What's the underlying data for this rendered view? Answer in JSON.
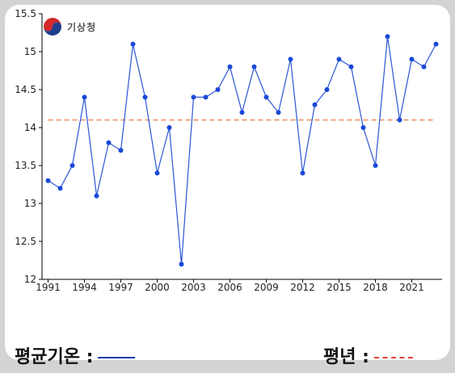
{
  "logo": {
    "text": "기상청",
    "icon": "kma-taegeuk-logo"
  },
  "legend": {
    "series_label": "평균기온 :",
    "normal_label": "평년 :"
  },
  "colors": {
    "series": "#2b55d6",
    "marker": "#1a49d8",
    "normal": "#f0905e",
    "axis": "#000000"
  },
  "chart_data": {
    "type": "line",
    "x": [
      1991,
      1992,
      1993,
      1994,
      1995,
      1996,
      1997,
      1998,
      1999,
      2000,
      2001,
      2002,
      2003,
      2004,
      2005,
      2006,
      2007,
      2008,
      2009,
      2010,
      2011,
      2012,
      2013,
      2014,
      2015,
      2016,
      2017,
      2018,
      2019,
      2020,
      2021,
      2022,
      2023
    ],
    "series": [
      {
        "name": "평균기온",
        "values": [
          13.3,
          13.2,
          13.5,
          14.4,
          13.1,
          13.8,
          13.7,
          15.1,
          14.4,
          13.4,
          14.0,
          12.2,
          14.4,
          14.4,
          14.5,
          14.8,
          14.2,
          14.8,
          14.4,
          14.2,
          14.9,
          13.4,
          14.3,
          14.5,
          14.9,
          14.8,
          14.0,
          13.5,
          15.2,
          14.1,
          14.9,
          14.8,
          15.1
        ]
      },
      {
        "name": "평년",
        "values": [
          14.1,
          14.1,
          14.1,
          14.1,
          14.1,
          14.1,
          14.1,
          14.1,
          14.1,
          14.1,
          14.1,
          14.1,
          14.1,
          14.1,
          14.1,
          14.1,
          14.1,
          14.1,
          14.1,
          14.1,
          14.1,
          14.1,
          14.1,
          14.1,
          14.1,
          14.1,
          14.1,
          14.1,
          14.1,
          14.1,
          14.1,
          14.1,
          14.1
        ]
      }
    ],
    "x_ticks": [
      "1991",
      "1994",
      "1997",
      "2000",
      "2003",
      "2006",
      "2009",
      "2012",
      "2015",
      "2018",
      "2021"
    ],
    "y_ticks": [
      "12",
      "12.5",
      "13",
      "13.5",
      "14",
      "14.5",
      "15",
      "15.5"
    ],
    "xlim": [
      1990.5,
      2023.5
    ],
    "ylim": [
      12,
      15.5
    ],
    "grid": false,
    "legend_position": "bottom"
  }
}
